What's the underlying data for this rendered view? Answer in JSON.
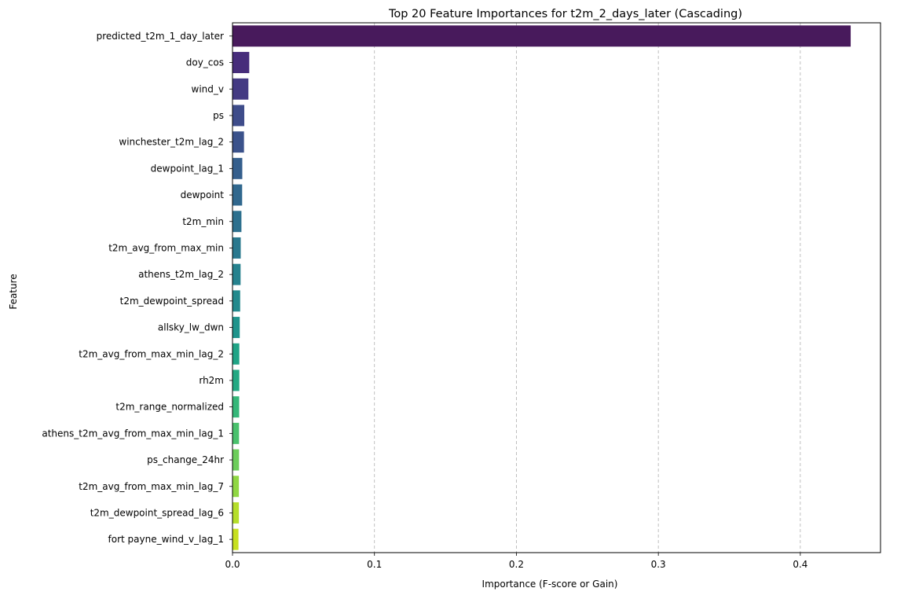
{
  "chart_data": {
    "type": "bar",
    "orientation": "horizontal",
    "title": "Top 20 Feature Importances for t2m_2_days_later (Cascading)",
    "xlabel": "Importance (F-score or Gain)",
    "ylabel": "Feature",
    "xlim": [
      0,
      0.4565
    ],
    "xticks": [
      0,
      0.1,
      0.2,
      0.3,
      0.4
    ],
    "xtick_labels": [
      "0.0",
      "0.1",
      "0.2",
      "0.3",
      "0.4"
    ],
    "grid": "x-dashed",
    "colormap": "viridis",
    "categories": [
      "predicted_t2m_1_day_later",
      "doy_cos",
      "wind_v",
      "ps",
      "winchester_t2m_lag_2",
      "dewpoint_lag_1",
      "dewpoint",
      "t2m_min",
      "t2m_avg_from_max_min",
      "athens_t2m_lag_2",
      "t2m_dewpoint_spread",
      "allsky_lw_dwn",
      "t2m_avg_from_max_min_lag_2",
      "rh2m",
      "t2m_range_normalized",
      "athens_t2m_avg_from_max_min_lag_1",
      "ps_change_24hr",
      "t2m_avg_from_max_min_lag_7",
      "t2m_dewpoint_spread_lag_6",
      "fort payne_wind_v_lag_1"
    ],
    "values": [
      0.4355,
      0.0118,
      0.0112,
      0.0083,
      0.0081,
      0.0069,
      0.0068,
      0.0063,
      0.0058,
      0.0057,
      0.0054,
      0.0051,
      0.0048,
      0.0048,
      0.0047,
      0.0046,
      0.0046,
      0.0045,
      0.0045,
      0.0042
    ],
    "colors": [
      "#481a5c",
      "#472d7b",
      "#443a83",
      "#3e4c8a",
      "#3b528b",
      "#355f8d",
      "#31688e",
      "#2d708e",
      "#2a788e",
      "#26828e",
      "#238a8d",
      "#1f948c",
      "#20a486",
      "#23a983",
      "#35b779",
      "#4ac16d",
      "#6ccd5a",
      "#90d743",
      "#b5de2b",
      "#c7e020"
    ]
  }
}
